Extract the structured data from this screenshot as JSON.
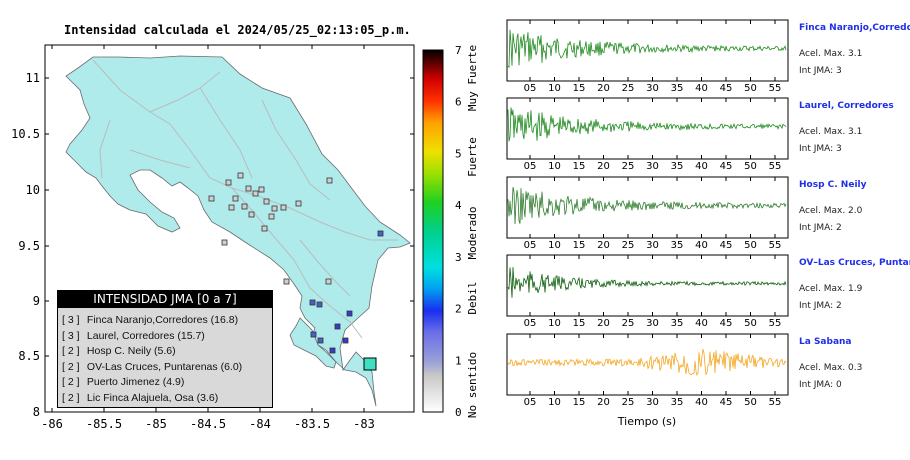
{
  "map": {
    "title": "Intensidad calculada el 2024/05/25_02:13:05_p.m.",
    "x_ticks": [
      "-86",
      "-85.5",
      "-85",
      "-84.5",
      "-84",
      "-83.5",
      "-83"
    ],
    "y_ticks": [
      "11",
      "10.5",
      "10",
      "9.5",
      "9",
      "8.5",
      "8"
    ]
  },
  "colorbar": {
    "ticks": [
      "0",
      "1",
      "2",
      "3",
      "4",
      "5",
      "6",
      "7"
    ],
    "labels": [
      "No sentido",
      "Debil",
      "Moderado",
      "Fuerte",
      "Muy Fuerte"
    ]
  },
  "legend": {
    "header": "INTENSIDAD JMA [0 a 7]",
    "items": [
      {
        "intensity": "[ 3 ]",
        "label": "Finca Naranjo,Corredores (16.8)"
      },
      {
        "intensity": "[ 3 ]",
        "label": "Laurel, Corredores (15.7)"
      },
      {
        "intensity": "[ 2 ]",
        "label": "Hosp C. Neily (5.6)"
      },
      {
        "intensity": "[ 2 ]",
        "label": "OV-Las Cruces, Puntarenas (6.0)"
      },
      {
        "intensity": "[ 2 ]",
        "label": "Puerto Jimenez (4.9)"
      },
      {
        "intensity": "[ 2 ]",
        "label": "Lic Finca Alajuela, Osa (3.6)"
      }
    ]
  },
  "stations": [
    {
      "name": "Finca Naranjo,Corredor",
      "accel": "Acel. Max. 3.1",
      "jma": "Int JMA: 3",
      "color": "#1e8a1e"
    },
    {
      "name": "Laurel, Corredores",
      "accel": "Acel. Max. 3.1",
      "jma": "Int JMA: 3",
      "color": "#1e8a1e"
    },
    {
      "name": "Hosp C. Neily",
      "accel": "Acel. Max. 2.0",
      "jma": "Int JMA: 2",
      "color": "#2e7d2e"
    },
    {
      "name": "OV–Las Cruces, Puntar",
      "accel": "Acel. Max. 1.9",
      "jma": "Int JMA: 2",
      "color": "#0d5e0d"
    },
    {
      "name": "La Sabana",
      "accel": "Acel. Max. 0.3",
      "jma": "Int JMA: 0",
      "color": "#f5a623"
    }
  ],
  "traces": {
    "x_ticks": [
      "05",
      "10",
      "15",
      "20",
      "25",
      "30",
      "35",
      "40",
      "45",
      "50",
      "55"
    ],
    "xlabel": "Tiempo (s)"
  },
  "colors": {
    "land": "#b0ebeb",
    "epicenter": "#3fe0c0"
  }
}
